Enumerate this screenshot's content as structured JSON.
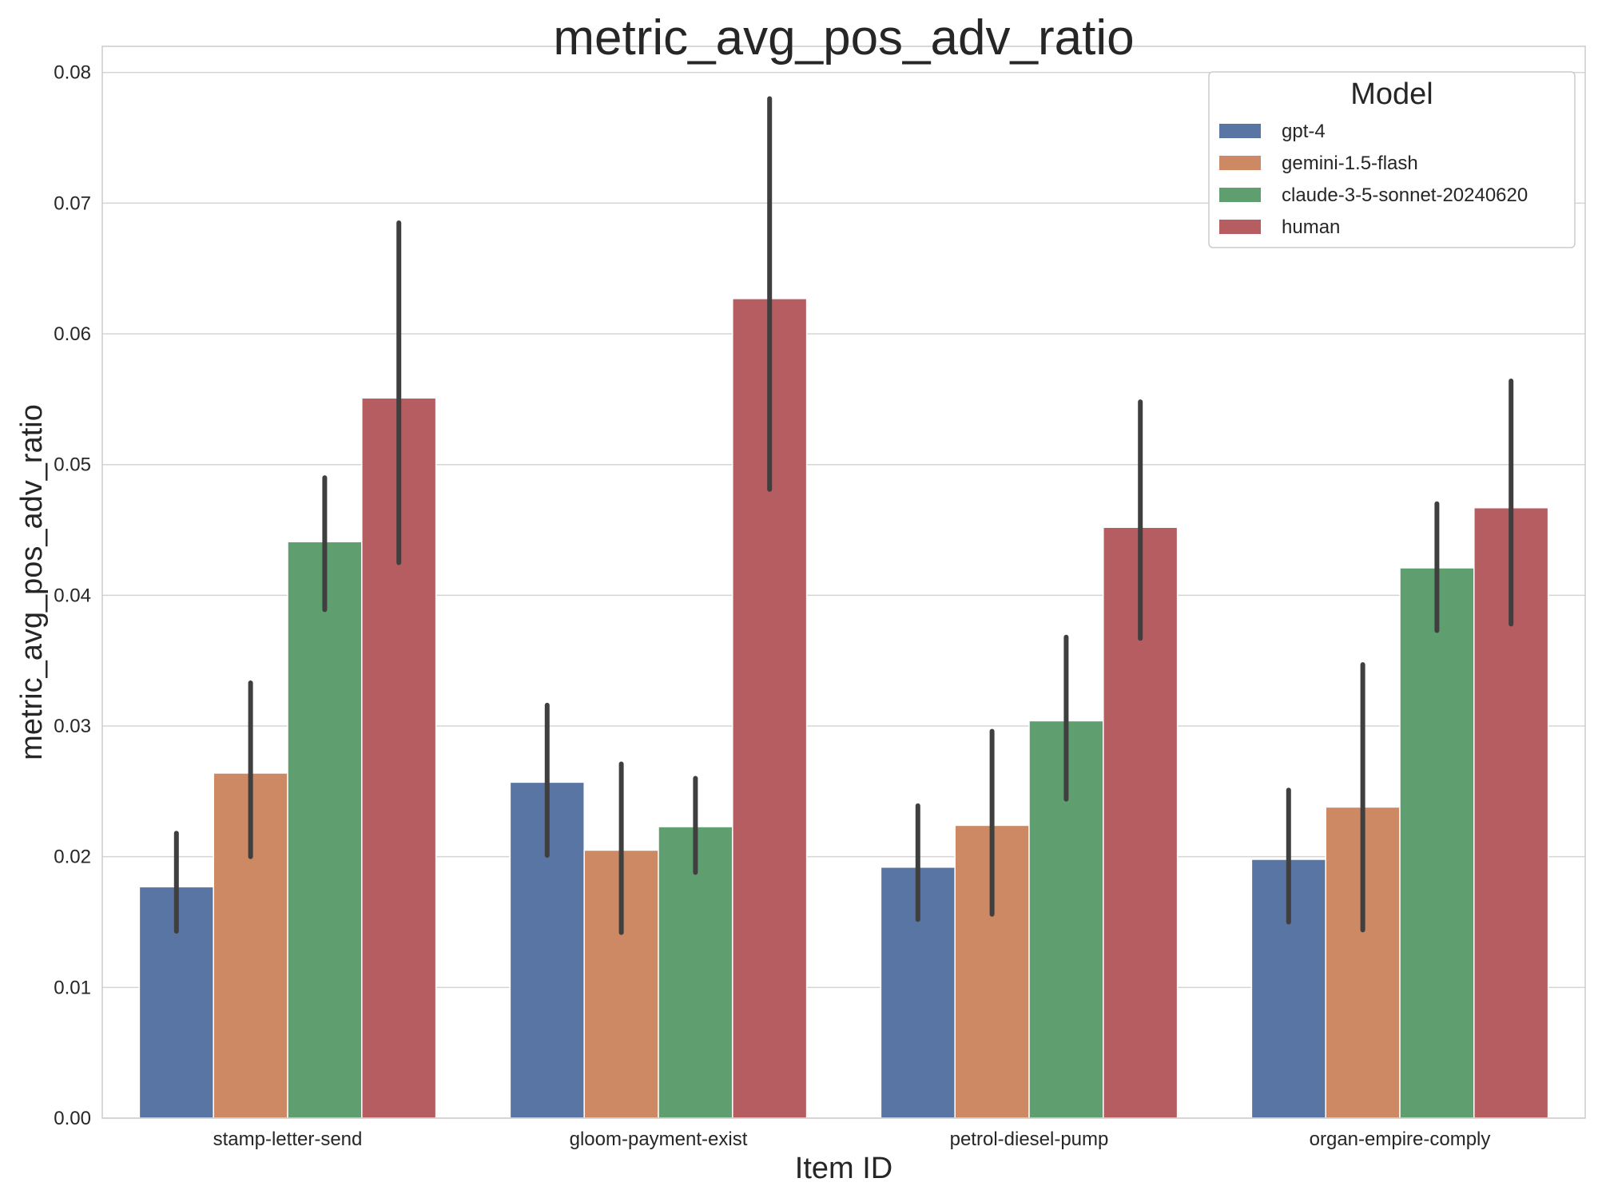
{
  "chart_data": {
    "type": "bar",
    "title": "metric_avg_pos_adv_ratio",
    "xlabel": "Item ID",
    "ylabel": "metric_avg_pos_adv_ratio",
    "ylim": [
      0,
      0.082
    ],
    "yticks": [
      "0.00",
      "0.01",
      "0.02",
      "0.03",
      "0.04",
      "0.05",
      "0.06",
      "0.07",
      "0.08"
    ],
    "grid": true,
    "legend_title": "Model",
    "legend_position": "top-right",
    "categories": [
      "stamp-letter-send",
      "gloom-payment-exist",
      "petrol-diesel-pump",
      "organ-empire-comply"
    ],
    "series": [
      {
        "name": "gpt-4",
        "color": "#5875a4",
        "values": [
          0.0177,
          0.0257,
          0.0192,
          0.0198
        ],
        "err_low": [
          0.0143,
          0.0201,
          0.0152,
          0.015
        ],
        "err_high": [
          0.0218,
          0.0316,
          0.0239,
          0.0251
        ]
      },
      {
        "name": "gemini-1.5-flash",
        "color": "#cc8963",
        "values": [
          0.0264,
          0.0205,
          0.0224,
          0.0238
        ],
        "err_low": [
          0.02,
          0.0142,
          0.0156,
          0.0144
        ],
        "err_high": [
          0.0333,
          0.0271,
          0.0296,
          0.0347
        ]
      },
      {
        "name": "claude-3-5-sonnet-20240620",
        "color": "#5f9e6e",
        "values": [
          0.0441,
          0.0223,
          0.0304,
          0.0421
        ],
        "err_low": [
          0.0389,
          0.0188,
          0.0244,
          0.0373
        ],
        "err_high": [
          0.049,
          0.026,
          0.0368,
          0.047
        ]
      },
      {
        "name": "human",
        "color": "#b55d60",
        "values": [
          0.0551,
          0.0627,
          0.0452,
          0.0467
        ],
        "err_low": [
          0.0425,
          0.0481,
          0.0367,
          0.0378
        ],
        "err_high": [
          0.0685,
          0.078,
          0.0548,
          0.0564
        ]
      }
    ]
  }
}
